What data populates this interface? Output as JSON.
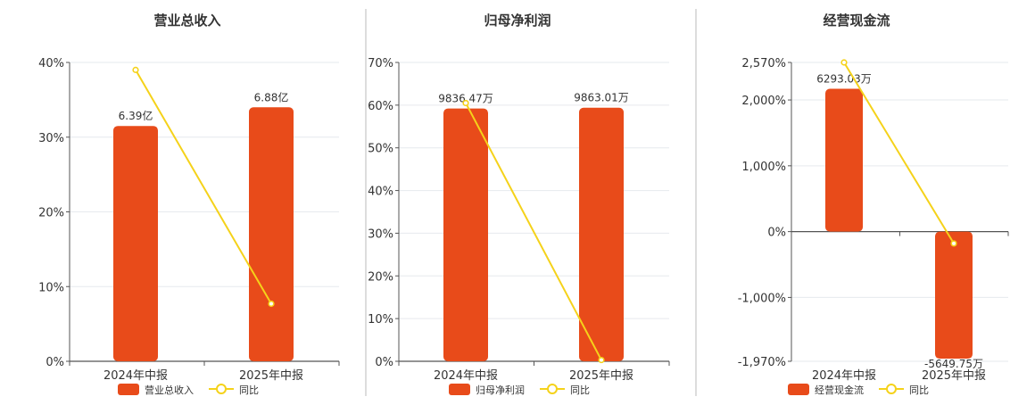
{
  "colors": {
    "bar": "#e84b1a",
    "line": "#f5d21a",
    "marker_fill": "#ffffff",
    "grid": "#e6e9ee",
    "axis": "#555555",
    "divider": "#bbbbbb",
    "text": "#333333"
  },
  "legend": {
    "yoy_label": "同比"
  },
  "chart_data": [
    {
      "type": "bar",
      "title": "营业总收入",
      "categories": [
        "2024年中报",
        "2025年中报"
      ],
      "series": [
        {
          "name": "营业总收入",
          "type": "bar",
          "values": [
            6.39,
            6.88
          ],
          "value_labels": [
            "6.39亿",
            "6.88亿"
          ],
          "bar_height_pct": [
            31.5,
            34.0
          ]
        },
        {
          "name": "同比",
          "type": "line",
          "values_pct": [
            39.0,
            7.7
          ]
        }
      ],
      "y_axis": {
        "ticks": [
          "0%",
          "10%",
          "20%",
          "30%",
          "40%"
        ],
        "tick_values": [
          0,
          10,
          20,
          30,
          40
        ],
        "ylim": [
          0,
          40
        ]
      },
      "grid": true,
      "legend_position": "bottom"
    },
    {
      "type": "bar",
      "title": "归母净利润",
      "categories": [
        "2024年中报",
        "2025年中报"
      ],
      "series": [
        {
          "name": "归母净利润",
          "type": "bar",
          "values": [
            9836.47,
            9863.01
          ],
          "value_labels": [
            "9836.47万",
            "9863.01万"
          ],
          "bar_height_pct": [
            59.2,
            59.4
          ]
        },
        {
          "name": "同比",
          "type": "line",
          "values_pct": [
            60.5,
            0.3
          ]
        }
      ],
      "y_axis": {
        "ticks": [
          "0%",
          "10%",
          "20%",
          "30%",
          "40%",
          "50%",
          "60%",
          "70%"
        ],
        "tick_values": [
          0,
          10,
          20,
          30,
          40,
          50,
          60,
          70
        ],
        "ylim": [
          0,
          70
        ]
      },
      "grid": true,
      "legend_position": "bottom"
    },
    {
      "type": "bar",
      "title": "经营现金流",
      "categories": [
        "2024年中报",
        "2025年中报"
      ],
      "series": [
        {
          "name": "经营现金流",
          "type": "bar",
          "values": [
            6293.03,
            -5649.75
          ],
          "value_labels": [
            "6293.03万",
            "-5649.75万"
          ],
          "bar_height_pct": [
            2170,
            -1930
          ]
        },
        {
          "name": "同比",
          "type": "line",
          "values_pct": [
            2570,
            -180
          ]
        }
      ],
      "y_axis": {
        "ticks": [
          "-1,970%",
          "-1,000%",
          "0%",
          "1,000%",
          "2,000%",
          "2,570%"
        ],
        "tick_values": [
          -1970,
          -1000,
          0,
          1000,
          2000,
          2570
        ],
        "ylim": [
          -1970,
          2570
        ]
      },
      "grid": true,
      "legend_position": "bottom"
    }
  ]
}
